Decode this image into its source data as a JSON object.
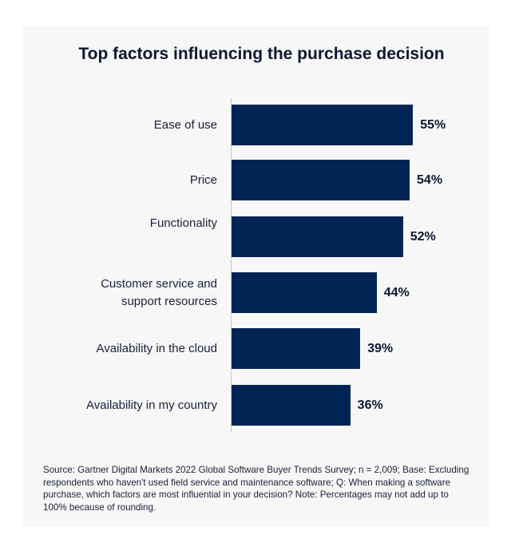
{
  "chart_data": {
    "type": "bar",
    "orientation": "horizontal",
    "title": "Top factors influencing the purchase decision",
    "categories": [
      "Ease of use",
      "Price",
      "Functionality",
      "Customer service and support resources",
      "Availability in the cloud",
      "Availability in my country"
    ],
    "values": [
      55,
      54,
      52,
      44,
      39,
      36
    ],
    "value_labels": [
      "55%",
      "54%",
      "52%",
      "44%",
      "39%",
      "36%"
    ],
    "unit": "%",
    "xlim": [
      0,
      100
    ],
    "grid": false,
    "bar_color": "#002554",
    "source": "Source: Gartner Digital Markets 2022 Global Software Buyer Trends Survey; n = 2,009; Base: Excluding respondents who haven't used field service and maintenance software; Q: When making a software purchase, which factors are most influential in your decision? Note: Percentages may not add up to 100% because of rounding."
  }
}
